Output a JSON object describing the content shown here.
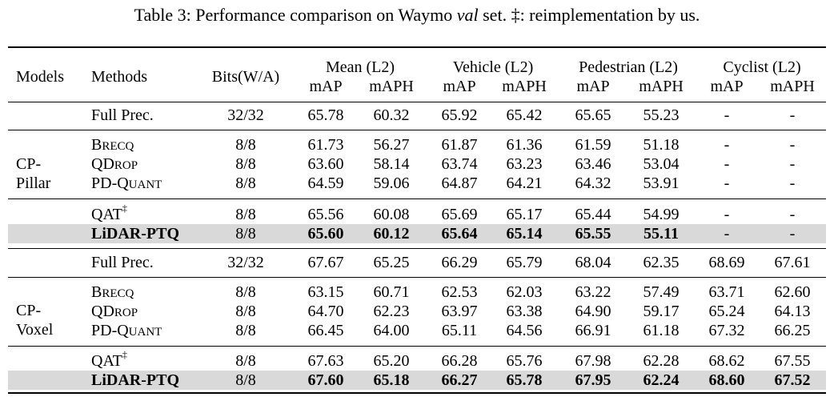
{
  "caption": {
    "prefix": "Table 3: Performance comparison on Waymo ",
    "italic": "val",
    "suffix": " set. ‡: reimplementation by us."
  },
  "header": {
    "models": "Models",
    "methods": "Methods",
    "bits": "Bits(W/A)",
    "groups": [
      "Mean (L2)",
      "Vehicle (L2)",
      "Pedestrian (L2)",
      "Cyclist (L2)"
    ],
    "subcols": [
      "mAP",
      "mAPH",
      "mAP",
      "mAPH",
      "mAP",
      "mAPH",
      "mAP",
      "mAPH"
    ]
  },
  "models": {
    "pillar": [
      "CP-",
      "Pillar"
    ],
    "voxel": [
      "CP-",
      "Voxel"
    ]
  },
  "rows": [
    {
      "method": "Full Prec.",
      "bits": "32/32",
      "values": [
        "65.78",
        "60.32",
        "65.92",
        "65.42",
        "65.65",
        "55.23",
        "-",
        "-"
      ]
    },
    {
      "method_sc": [
        "B",
        "RECQ"
      ],
      "bits": "8/8",
      "values": [
        "61.73",
        "56.27",
        "61.87",
        "61.36",
        "61.59",
        "51.18",
        "-",
        "-"
      ]
    },
    {
      "method_sc": [
        "QD",
        "ROP"
      ],
      "bits": "8/8",
      "values": [
        "63.60",
        "58.14",
        "63.74",
        "63.23",
        "63.46",
        "53.04",
        "-",
        "-"
      ]
    },
    {
      "method_sc": [
        "PD-Q",
        "UANT"
      ],
      "bits": "8/8",
      "values": [
        "64.59",
        "59.06",
        "64.87",
        "64.21",
        "64.32",
        "53.91",
        "-",
        "-"
      ]
    },
    {
      "method": "QAT",
      "sup": "‡",
      "bits": "8/8",
      "values": [
        "65.56",
        "60.08",
        "65.69",
        "65.17",
        "65.44",
        "54.99",
        "-",
        "-"
      ]
    },
    {
      "method": "LiDAR-PTQ",
      "bits": "8/8",
      "values": [
        "65.60",
        "60.12",
        "65.64",
        "65.14",
        "65.55",
        "55.11",
        "-",
        "-"
      ]
    },
    {
      "method": "Full Prec.",
      "bits": "32/32",
      "values": [
        "67.67",
        "65.25",
        "66.29",
        "65.79",
        "68.04",
        "62.35",
        "68.69",
        "67.61"
      ]
    },
    {
      "method_sc": [
        "B",
        "RECQ"
      ],
      "bits": "8/8",
      "values": [
        "63.15",
        "60.71",
        "62.53",
        "62.03",
        "63.22",
        "57.49",
        "63.71",
        "62.60"
      ]
    },
    {
      "method_sc": [
        "QD",
        "ROP"
      ],
      "bits": "8/8",
      "values": [
        "64.70",
        "62.23",
        "63.97",
        "63.38",
        "64.90",
        "59.17",
        "65.24",
        "64.13"
      ]
    },
    {
      "method_sc": [
        "PD-Q",
        "UANT"
      ],
      "bits": "8/8",
      "values": [
        "66.45",
        "64.00",
        "65.11",
        "64.56",
        "66.91",
        "61.18",
        "67.32",
        "66.25"
      ]
    },
    {
      "method": "QAT",
      "sup": "‡",
      "bits": "8/8",
      "values": [
        "67.63",
        "65.20",
        "66.28",
        "65.76",
        "67.98",
        "62.28",
        "68.62",
        "67.55"
      ]
    },
    {
      "method": "LiDAR-PTQ",
      "bits": "8/8",
      "values": [
        "67.60",
        "65.18",
        "66.27",
        "65.78",
        "67.95",
        "62.24",
        "68.60",
        "67.52"
      ]
    }
  ]
}
